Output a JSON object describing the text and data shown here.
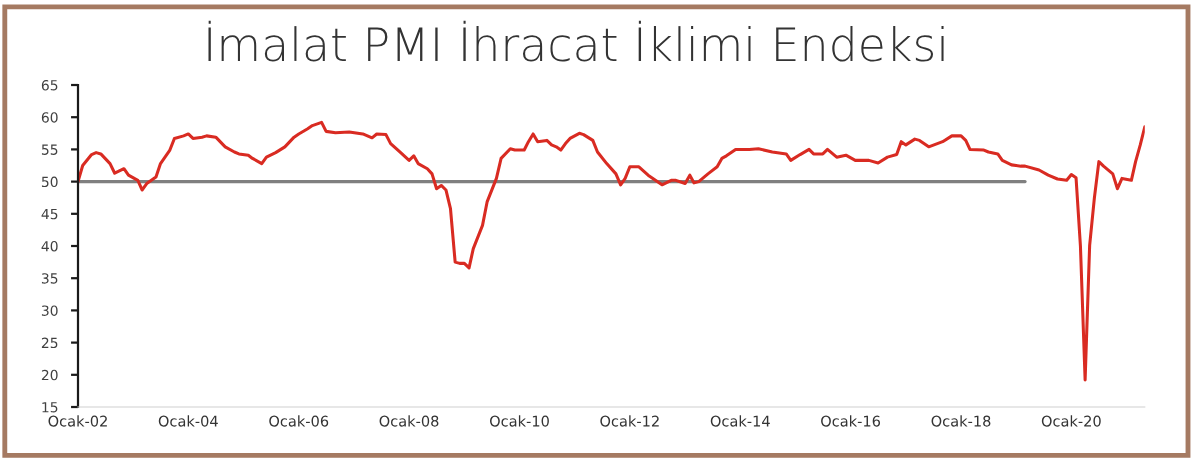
{
  "chart_data": {
    "type": "line",
    "title": "İmalat PMI İhracat İklimi Endeksi",
    "series": [
      {
        "color": "#808080",
        "x": [
          "2002-01",
          "2019-03"
        ],
        "values": [
          50,
          50
        ]
      },
      {
        "color": "#d92b22",
        "x": [
          "2002-01",
          "2002-02",
          "2002-04",
          "2002-05",
          "2002-06",
          "2002-08",
          "2002-09",
          "2002-11",
          "2002-12",
          "2003-02",
          "2003-03",
          "2003-04",
          "2003-06",
          "2003-07",
          "2003-09",
          "2003-10",
          "2003-12",
          "2004-01",
          "2004-02",
          "2004-04",
          "2004-05",
          "2004-07",
          "2004-09",
          "2004-11",
          "2004-12",
          "2005-02",
          "2005-03",
          "2005-05",
          "2005-06",
          "2005-08",
          "2005-10",
          "2005-12",
          "2006-01",
          "2006-03",
          "2006-04",
          "2006-06",
          "2006-07",
          "2006-09",
          "2006-12",
          "2007-03",
          "2007-05",
          "2007-06",
          "2007-08",
          "2007-09",
          "2007-11",
          "2008-01",
          "2008-02",
          "2008-03",
          "2008-05",
          "2008-06",
          "2008-07",
          "2008-08",
          "2008-09",
          "2008-10",
          "2008-11",
          "2008-12",
          "2009-01",
          "2009-02",
          "2009-03",
          "2009-05",
          "2009-06",
          "2009-08",
          "2009-09",
          "2009-11",
          "2009-12",
          "2010-02",
          "2010-03",
          "2010-04",
          "2010-05",
          "2010-07",
          "2010-08",
          "2010-09",
          "2010-10",
          "2010-11",
          "2010-12",
          "2011-02",
          "2011-03",
          "2011-05",
          "2011-06",
          "2011-08",
          "2011-10",
          "2011-11",
          "2011-12",
          "2012-01",
          "2012-03",
          "2012-05",
          "2012-08",
          "2012-10",
          "2012-11",
          "2013-01",
          "2013-02",
          "2013-03",
          "2013-04",
          "2013-06",
          "2013-08",
          "2013-09",
          "2013-10",
          "2013-12",
          "2014-03",
          "2014-05",
          "2014-08",
          "2014-11",
          "2014-12",
          "2015-02",
          "2015-04",
          "2015-05",
          "2015-07",
          "2015-08",
          "2015-10",
          "2015-12",
          "2016-02",
          "2016-05",
          "2016-07",
          "2016-09",
          "2016-11",
          "2016-12",
          "2017-01",
          "2017-03",
          "2017-04",
          "2017-06",
          "2017-09",
          "2017-11",
          "2018-01",
          "2018-02",
          "2018-03",
          "2018-06",
          "2018-07",
          "2018-09",
          "2018-10",
          "2018-12",
          "2019-02",
          "2019-03",
          "2019-06",
          "2019-08",
          "2019-10",
          "2019-12",
          "2020-01",
          "2020-02",
          "2020-03",
          "2020-04",
          "2020-05",
          "2020-06",
          "2020-07",
          "2020-08",
          "2020-10",
          "2020-11",
          "2020-12",
          "2021-02",
          "2021-03",
          "2021-04",
          "2021-05"
        ],
        "values": [
          50.0,
          52.5,
          54.2,
          54.5,
          54.3,
          52.8,
          51.3,
          52.0,
          51.0,
          50.2,
          48.7,
          49.7,
          50.7,
          52.8,
          54.9,
          56.7,
          57.1,
          57.4,
          56.7,
          56.9,
          57.1,
          56.9,
          55.4,
          54.6,
          54.3,
          54.1,
          53.6,
          52.8,
          53.8,
          54.5,
          55.4,
          56.9,
          57.4,
          58.2,
          58.7,
          59.2,
          57.8,
          57.6,
          57.7,
          57.4,
          56.8,
          57.4,
          57.3,
          55.9,
          54.6,
          53.3,
          54.0,
          52.8,
          52.0,
          51.2,
          48.9,
          49.4,
          48.7,
          45.8,
          37.5,
          37.3,
          37.3,
          36.6,
          39.6,
          43.2,
          46.9,
          50.5,
          53.6,
          55.1,
          54.9,
          54.9,
          56.2,
          57.4,
          56.2,
          56.4,
          55.7,
          55.4,
          54.9,
          55.9,
          56.7,
          57.5,
          57.3,
          56.4,
          54.6,
          52.8,
          51.2,
          49.5,
          50.5,
          52.3,
          52.3,
          51.0,
          49.5,
          50.2,
          50.2,
          49.7,
          51.0,
          49.8,
          50.0,
          51.2,
          52.3,
          53.6,
          54.0,
          55.0,
          55.0,
          55.1,
          54.6,
          54.3,
          53.3,
          54.2,
          55.0,
          54.3,
          54.3,
          55.0,
          53.8,
          54.1,
          53.3,
          53.3,
          52.9,
          53.8,
          54.2,
          56.2,
          55.7,
          56.6,
          56.4,
          55.4,
          56.2,
          57.1,
          57.1,
          56.4,
          55.0,
          54.9,
          54.6,
          54.3,
          53.3,
          52.6,
          52.4,
          52.4,
          51.8,
          51.0,
          50.4,
          50.2,
          51.1,
          50.6,
          40.0,
          19.2,
          40.1,
          47.4,
          53.1,
          52.4,
          51.2,
          48.9,
          50.5,
          50.2,
          53.1,
          55.7,
          58.5
        ]
      }
    ],
    "xlim": [
      "2002-01",
      "2021-05"
    ],
    "xticks": [
      {
        "value": "2002-01",
        "label": "Ocak-02"
      },
      {
        "value": "2004-01",
        "label": "Ocak-04"
      },
      {
        "value": "2006-01",
        "label": "Ocak-06"
      },
      {
        "value": "2008-01",
        "label": "Ocak-08"
      },
      {
        "value": "2010-01",
        "label": "Ocak-10"
      },
      {
        "value": "2012-01",
        "label": "Ocak-12"
      },
      {
        "value": "2014-01",
        "label": "Ocak-14"
      },
      {
        "value": "2016-01",
        "label": "Ocak-16"
      },
      {
        "value": "2018-01",
        "label": "Ocak-18"
      },
      {
        "value": "2020-01",
        "label": "Ocak-20"
      }
    ],
    "ylim": [
      15,
      65
    ],
    "yticks": [
      15,
      20,
      25,
      30,
      35,
      40,
      45,
      50,
      55,
      60,
      65
    ],
    "grid": false
  }
}
